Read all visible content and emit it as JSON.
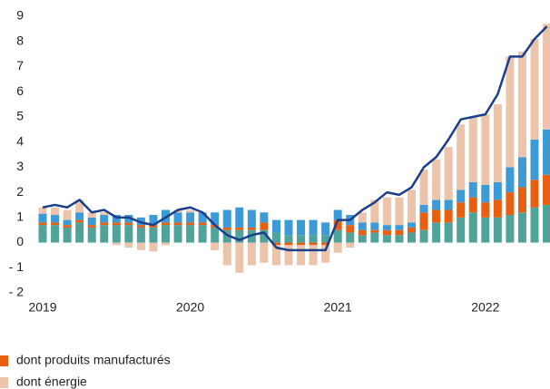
{
  "chart_data": {
    "type": "bar",
    "categories": [
      "2019",
      null,
      null,
      null,
      null,
      null,
      null,
      null,
      null,
      null,
      null,
      null,
      "2020",
      null,
      null,
      null,
      null,
      null,
      null,
      null,
      null,
      null,
      null,
      null,
      "2021",
      null,
      null,
      null,
      null,
      null,
      null,
      null,
      null,
      null,
      null,
      null,
      "2022",
      null,
      null,
      null,
      null,
      null
    ],
    "series": [
      {
        "color": "#4fa39a",
        "values": [
          0.7,
          0.7,
          0.6,
          0.8,
          0.6,
          0.7,
          0.7,
          0.7,
          0.6,
          0.6,
          0.7,
          0.7,
          0.7,
          0.7,
          0.6,
          0.5,
          0.5,
          0.5,
          0.5,
          0.4,
          0.3,
          0.3,
          0.3,
          0.3,
          0.5,
          0.4,
          0.3,
          0.4,
          0.3,
          0.3,
          0.4,
          0.5,
          0.8,
          0.8,
          1.0,
          1.2,
          1.0,
          1.0,
          1.1,
          1.2,
          1.4,
          1.5
        ]
      },
      {
        "name": "dont produits manufacturés",
        "color": "#e8600f",
        "values": [
          0.1,
          0.1,
          0.1,
          0.1,
          0.1,
          0.1,
          0.1,
          0.1,
          0.1,
          0.1,
          0.1,
          0.1,
          0.1,
          0.1,
          0.1,
          0.1,
          0.1,
          0.1,
          0.3,
          -0.1,
          -0.1,
          -0.1,
          -0.1,
          -0.1,
          0.4,
          0.3,
          0.2,
          0.1,
          0.2,
          0.2,
          0.2,
          0.7,
          0.5,
          0.5,
          0.6,
          0.6,
          0.6,
          0.7,
          0.9,
          1.0,
          1.1,
          1.2
        ]
      },
      {
        "color": "#3c9ad6",
        "values": [
          0.35,
          0.3,
          0.2,
          0.3,
          0.3,
          0.3,
          0.3,
          0.3,
          0.3,
          0.4,
          0.5,
          0.4,
          0.4,
          0.4,
          0.5,
          0.7,
          0.8,
          0.7,
          0.4,
          0.5,
          0.6,
          0.6,
          0.6,
          0.5,
          0.4,
          0.4,
          0.3,
          0.3,
          0.2,
          0.2,
          0.2,
          0.3,
          0.4,
          0.4,
          0.5,
          0.6,
          0.7,
          0.7,
          1.0,
          1.2,
          1.6,
          1.8
        ]
      },
      {
        "name": "dont énergie",
        "color": "#ecc4ac",
        "values": [
          0.25,
          0.3,
          0.4,
          0.5,
          0.2,
          0.1,
          -0.1,
          -0.2,
          -0.3,
          -0.35,
          -0.1,
          0.1,
          0.1,
          0.0,
          -0.3,
          -0.9,
          -1.2,
          -0.9,
          -0.8,
          -0.8,
          -0.8,
          -0.8,
          -0.8,
          -0.7,
          -0.4,
          -0.2,
          0.4,
          0.9,
          1.1,
          1.1,
          1.3,
          1.4,
          1.6,
          2.1,
          2.6,
          2.6,
          2.8,
          3.1,
          4.4,
          4.2,
          4.0,
          4.2
        ]
      },
      {
        "type": "line",
        "color": "#1c3f8c",
        "values": [
          1.4,
          1.5,
          1.4,
          1.7,
          1.2,
          1.3,
          1.0,
          1.0,
          0.8,
          0.7,
          1.0,
          1.3,
          1.4,
          1.2,
          0.7,
          0.3,
          0.1,
          0.3,
          0.4,
          -0.2,
          -0.3,
          -0.3,
          -0.3,
          -0.3,
          0.9,
          0.9,
          1.3,
          1.6,
          2.0,
          1.9,
          2.2,
          3.0,
          3.4,
          4.1,
          4.9,
          5.0,
          5.1,
          5.9,
          7.4,
          7.4,
          8.1,
          8.6
        ]
      }
    ],
    "ylim": [
      -2,
      9
    ],
    "yticks": [
      {
        "value": -2,
        "label": "- 2"
      },
      {
        "value": -1,
        "label": "- 1"
      },
      0,
      1,
      2,
      3,
      4,
      5,
      6,
      7,
      8,
      9
    ],
    "grid": false
  }
}
